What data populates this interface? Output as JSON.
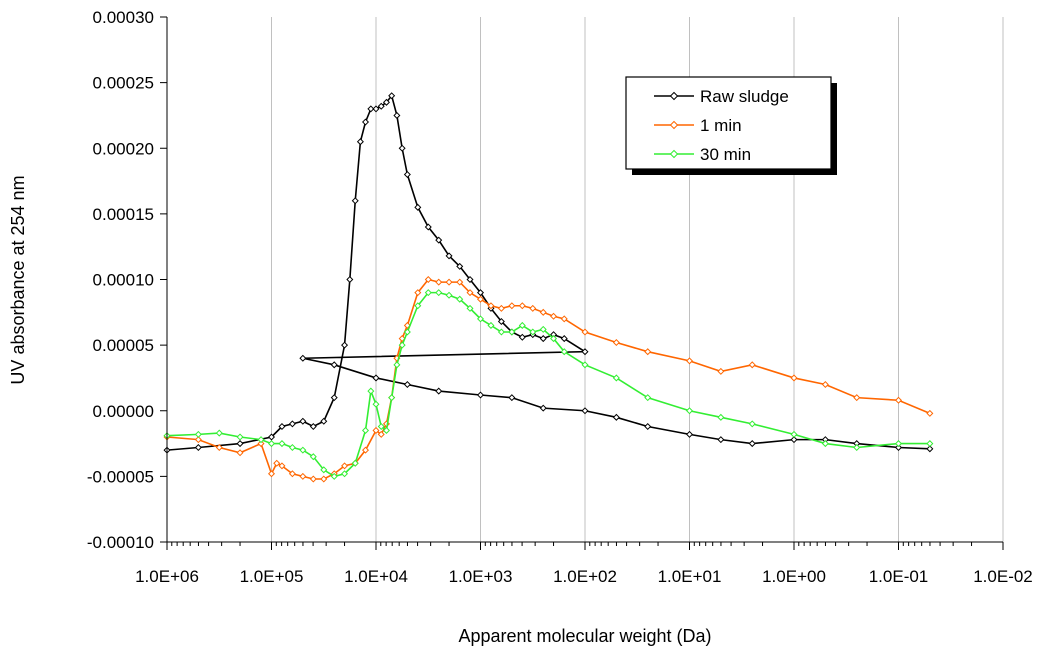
{
  "chart_data": {
    "type": "line",
    "title": "",
    "xlabel": "Apparent molecular weight (Da)",
    "ylabel": "UV absorbance at 254 nm",
    "x_scale": "log",
    "x_reversed": true,
    "xlim": [
      1000000,
      0.01
    ],
    "ylim": [
      -0.0001,
      0.0003
    ],
    "x_ticks": [
      1000000,
      100000,
      10000,
      1000,
      100,
      10,
      1,
      0.1,
      0.01
    ],
    "x_tick_labels": [
      "1.0E+06",
      "1.0E+05",
      "1.0E+04",
      "1.0E+03",
      "1.0E+02",
      "1.0E+01",
      "1.0E+00",
      "1.0E-01",
      "1.0E-02"
    ],
    "y_ticks": [
      -0.0001,
      -5e-05,
      0,
      5e-05,
      0.0001,
      0.00015,
      0.0002,
      0.00025,
      0.0003
    ],
    "y_tick_labels": [
      "-0.00010",
      "-0.00005",
      "0.00000",
      "0.00005",
      "0.00010",
      "0.00015",
      "0.00020",
      "0.00025",
      "0.00030"
    ],
    "grid": "vertical",
    "legend_position": "top-right",
    "series": [
      {
        "name": "Raw sludge",
        "color": "#000000",
        "marker": "diamond",
        "x": [
          1000000,
          501000,
          200000,
          100000,
          79400,
          63100,
          50100,
          39800,
          31600,
          25100,
          20000,
          17800,
          15800,
          14100,
          12600,
          11200,
          10000,
          8910,
          7940,
          7080,
          6310,
          5620,
          5010,
          3980,
          3160,
          2510,
          2000,
          1580,
          1260,
          1000,
          794,
          631,
          501,
          398,
          316,
          251,
          200,
          158,
          100,
          50100,
          25100,
          10000,
          5010,
          2510,
          1000,
          501,
          251,
          100,
          50.1,
          25.1,
          10,
          5.01,
          2.51,
          1,
          0.501,
          0.251,
          0.1,
          0.0501
        ],
        "y": [
          -3e-05,
          -2.8e-05,
          -2.5e-05,
          -2e-05,
          -1.2e-05,
          -1e-05,
          -8e-06,
          -1.2e-05,
          -8e-06,
          1e-05,
          5e-05,
          0.0001,
          0.00016,
          0.000205,
          0.00022,
          0.00023,
          0.00023,
          0.000232,
          0.000235,
          0.00024,
          0.000225,
          0.0002,
          0.00018,
          0.000155,
          0.00014,
          0.00013,
          0.000118,
          0.00011,
          0.0001,
          9e-05,
          7.8e-05,
          6.8e-05,
          6e-05,
          5.6e-05,
          5.8e-05,
          5.5e-05,
          5.8e-05,
          5.5e-05,
          4.5e-05,
          4e-05,
          3.5e-05,
          2.5e-05,
          2e-05,
          1.5e-05,
          1.2e-05,
          1e-05,
          2e-06,
          0.0,
          -5e-06,
          -1.2e-05,
          -1.8e-05,
          -2.2e-05,
          -2.5e-05,
          -2.2e-05,
          -2.2e-05,
          -2.5e-05,
          -2.8e-05,
          -2.9e-05
        ],
        "x_domain_note": ""
      },
      {
        "name": "1 min",
        "color": "#ff6600",
        "marker": "diamond",
        "x": [
          1000000,
          501000,
          316000,
          200000,
          126000,
          100000,
          89100,
          79400,
          63100,
          50100,
          39800,
          31600,
          25100,
          20000,
          15800,
          12600,
          10000,
          8910,
          7940,
          7080,
          6310,
          5620,
          5010,
          3980,
          3160,
          2510,
          2000,
          1580,
          1260,
          1000,
          794,
          631,
          501,
          398,
          316,
          251,
          200,
          158,
          100,
          50.1,
          25.1,
          10,
          5.01,
          2.51,
          1,
          0.501,
          0.251,
          0.1,
          0.0501
        ],
        "y": [
          -2e-05,
          -2.2e-05,
          -2.8e-05,
          -3.2e-05,
          -2.5e-05,
          -4.8e-05,
          -4e-05,
          -4.2e-05,
          -4.8e-05,
          -5e-05,
          -5.2e-05,
          -5.2e-05,
          -4.8e-05,
          -4.2e-05,
          -4e-05,
          -3e-05,
          -1.5e-05,
          -1.8e-05,
          -1e-05,
          1e-05,
          4e-05,
          5.5e-05,
          6.5e-05,
          9e-05,
          0.0001,
          9.8e-05,
          9.8e-05,
          9.8e-05,
          9e-05,
          8.5e-05,
          8e-05,
          7.8e-05,
          8e-05,
          8e-05,
          7.8e-05,
          7.5e-05,
          7.2e-05,
          7e-05,
          6e-05,
          5.2e-05,
          4.5e-05,
          3.8e-05,
          3e-05,
          3.5e-05,
          2.5e-05,
          2e-05,
          1e-05,
          8e-06,
          -2e-06
        ],
        "x_domain_note": ""
      },
      {
        "name": "30 min",
        "color": "#33ee33",
        "marker": "diamond",
        "x": [
          1000000,
          501000,
          316000,
          200000,
          126000,
          100000,
          79400,
          63100,
          50100,
          39800,
          31600,
          25100,
          20000,
          15800,
          12600,
          11200,
          10000,
          8910,
          7940,
          7080,
          6310,
          5620,
          5010,
          3980,
          3160,
          2510,
          2000,
          1580,
          1260,
          1000,
          794,
          631,
          501,
          398,
          316,
          251,
          200,
          158,
          100,
          50.1,
          25.1,
          10,
          5.01,
          2.51,
          1,
          0.501,
          0.251,
          0.1,
          0.0501
        ],
        "y": [
          -1.9e-05,
          -1.8e-05,
          -1.7e-05,
          -2e-05,
          -2.2e-05,
          -2.5e-05,
          -2.5e-05,
          -2.8e-05,
          -3e-05,
          -3.5e-05,
          -4.5e-05,
          -5e-05,
          -4.8e-05,
          -4e-05,
          -1.5e-05,
          1.5e-05,
          5e-06,
          -1.2e-05,
          -1.5e-05,
          1e-05,
          3.5e-05,
          5e-05,
          6e-05,
          8e-05,
          9e-05,
          9e-05,
          8.8e-05,
          8.5e-05,
          7.8e-05,
          7e-05,
          6.5e-05,
          6e-05,
          6e-05,
          6.5e-05,
          6e-05,
          6.2e-05,
          5.5e-05,
          4.5e-05,
          3.5e-05,
          2.5e-05,
          1e-05,
          0.0,
          -5e-06,
          -1e-05,
          -1.8e-05,
          -2.5e-05,
          -2.8e-05,
          -2.5e-05,
          -2.5e-05
        ],
        "x_domain_note": ""
      }
    ]
  }
}
